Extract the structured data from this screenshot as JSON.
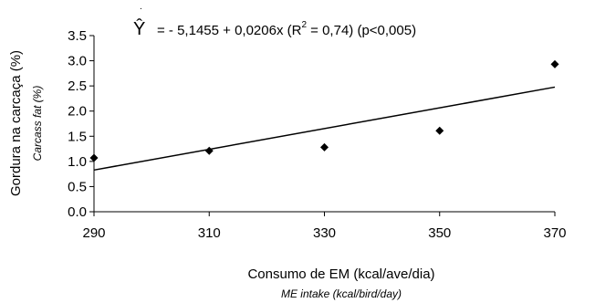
{
  "chart_data": {
    "type": "scatter",
    "equation": {
      "yhat": "Ŷ",
      "text_prefix": "= - 5,1455 + 0,0206x (R",
      "superscript": "2",
      "text_suffix": " = 0,74) (p<0,005)"
    },
    "ylabel": "Gordura na carcaça (%)",
    "ylabel_en": "Carcass fat (%)",
    "xlabel": "Consumo de EM (kcal/ave/dia)",
    "xlabel_en": "ME intake (kcal/bird/day)",
    "xlim": [
      290,
      370
    ],
    "ylim": [
      0,
      3.5
    ],
    "x_ticks": [
      "290",
      "310",
      "330",
      "350",
      "370"
    ],
    "y_ticks": [
      "0.0",
      "0.5",
      "1.0",
      "1.5",
      "2.0",
      "2.5",
      "3.0",
      "3.5"
    ],
    "points": [
      {
        "x": 290,
        "y": 1.07
      },
      {
        "x": 310,
        "y": 1.21
      },
      {
        "x": 330,
        "y": 1.28
      },
      {
        "x": 350,
        "y": 1.61
      },
      {
        "x": 370,
        "y": 2.93
      }
    ],
    "trendline": {
      "intercept": -5.1455,
      "slope": 0.0206
    },
    "grid": false,
    "legend": "none"
  }
}
